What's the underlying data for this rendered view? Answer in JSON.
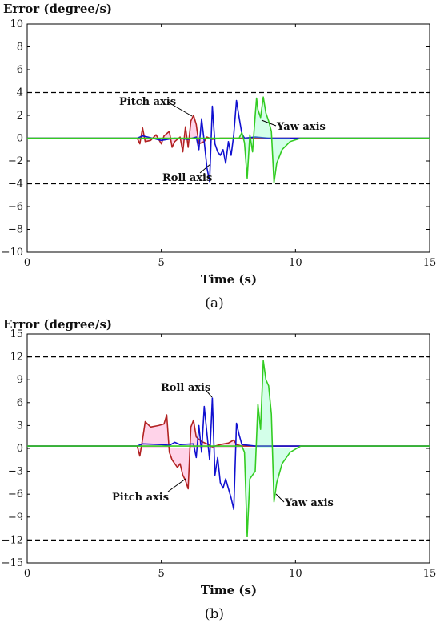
{
  "colors": {
    "roll": "#1010d0",
    "pitch": "#b22222",
    "yaw": "#33cc22",
    "pitch_shade": "#ff80c0",
    "yaw_shade": "#80ffc0",
    "bound": "#000000"
  },
  "chart_data": [
    {
      "type": "line",
      "caption": "(a)",
      "ylabel": "Error (degree/s)",
      "xlabel": "Time (s)",
      "xlim": [
        0,
        15
      ],
      "ylim": [
        -10,
        10
      ],
      "xticks": [
        "0",
        "5",
        "10",
        "15"
      ],
      "yticks": [
        "10",
        "8",
        "6",
        "4",
        "2",
        "0",
        "−2",
        "−4",
        "−6",
        "−8",
        "−10"
      ],
      "bounds": [
        4,
        -4
      ],
      "annotations": [
        "Pitch axis",
        "Yaw axis",
        "Roll axis"
      ],
      "series": [
        {
          "name": "Pitch axis",
          "color": "pitch",
          "points": [
            [
              0,
              0
            ],
            [
              4.1,
              0
            ],
            [
              4.2,
              -0.5
            ],
            [
              4.3,
              0.9
            ],
            [
              4.4,
              -0.3
            ],
            [
              4.6,
              -0.2
            ],
            [
              4.8,
              0.3
            ],
            [
              5.0,
              -0.5
            ],
            [
              5.1,
              0.2
            ],
            [
              5.3,
              0.6
            ],
            [
              5.4,
              -0.8
            ],
            [
              5.5,
              -0.3
            ],
            [
              5.7,
              0.1
            ],
            [
              5.8,
              -1.2
            ],
            [
              5.9,
              1.0
            ],
            [
              6.0,
              -0.8
            ],
            [
              6.1,
              1.5
            ],
            [
              6.2,
              2.0
            ],
            [
              6.3,
              1.2
            ],
            [
              6.4,
              -0.5
            ],
            [
              6.6,
              -0.3
            ],
            [
              6.7,
              0.1
            ],
            [
              6.9,
              -0.1
            ],
            [
              7.2,
              0
            ],
            [
              15,
              0
            ]
          ]
        },
        {
          "name": "Roll axis",
          "color": "roll",
          "points": [
            [
              0,
              0
            ],
            [
              4.1,
              0
            ],
            [
              4.3,
              0.2
            ],
            [
              4.5,
              0.1
            ],
            [
              5.0,
              -0.2
            ],
            [
              5.5,
              0
            ],
            [
              6.0,
              -0.1
            ],
            [
              6.3,
              0.1
            ],
            [
              6.4,
              -1.0
            ],
            [
              6.5,
              1.7
            ],
            [
              6.6,
              -0.3
            ],
            [
              6.7,
              -2.6
            ],
            [
              6.8,
              -3.8
            ],
            [
              6.9,
              2.8
            ],
            [
              7.0,
              -0.5
            ],
            [
              7.1,
              -1.2
            ],
            [
              7.2,
              -1.5
            ],
            [
              7.3,
              -1.0
            ],
            [
              7.4,
              -2.2
            ],
            [
              7.5,
              -0.3
            ],
            [
              7.6,
              -1.5
            ],
            [
              7.7,
              0.3
            ],
            [
              7.8,
              3.3
            ],
            [
              7.9,
              1.8
            ],
            [
              8.0,
              0.4
            ],
            [
              8.1,
              0
            ],
            [
              8.5,
              0.1
            ],
            [
              9.0,
              0
            ],
            [
              15,
              0
            ]
          ]
        },
        {
          "name": "Yaw axis",
          "color": "yaw",
          "points": [
            [
              0,
              0
            ],
            [
              7.9,
              0
            ],
            [
              8.0,
              0.5
            ],
            [
              8.1,
              -0.4
            ],
            [
              8.2,
              -3.5
            ],
            [
              8.3,
              0.3
            ],
            [
              8.4,
              -1.2
            ],
            [
              8.5,
              2.0
            ],
            [
              8.55,
              3.5
            ],
            [
              8.6,
              2.5
            ],
            [
              8.7,
              1.8
            ],
            [
              8.8,
              3.6
            ],
            [
              8.9,
              2.2
            ],
            [
              9.0,
              1.5
            ],
            [
              9.1,
              0.6
            ],
            [
              9.2,
              -3.9
            ],
            [
              9.3,
              -2.2
            ],
            [
              9.5,
              -1.0
            ],
            [
              9.8,
              -0.3
            ],
            [
              10.2,
              0
            ],
            [
              15,
              0
            ]
          ]
        }
      ]
    },
    {
      "type": "line",
      "caption": "(b)",
      "ylabel": "Error (degree/s)",
      "xlabel": "Time (s)",
      "xlim": [
        0,
        15
      ],
      "ylim": [
        -15,
        15
      ],
      "xticks": [
        "0",
        "5",
        "10",
        "15"
      ],
      "yticks": [
        "15",
        "12",
        "9",
        "6",
        "3",
        "0",
        "−3",
        "−6",
        "−9",
        "−12",
        "−15"
      ],
      "bounds": [
        12,
        -12
      ],
      "annotations": [
        "Roll axis",
        "Pitch axis",
        "Yaw axis"
      ],
      "series": [
        {
          "name": "Pitch axis",
          "color": "pitch",
          "points": [
            [
              0,
              0.3
            ],
            [
              4.1,
              0.3
            ],
            [
              4.2,
              -1.0
            ],
            [
              4.3,
              1.2
            ],
            [
              4.4,
              3.5
            ],
            [
              4.6,
              2.8
            ],
            [
              4.9,
              3.0
            ],
            [
              5.1,
              3.2
            ],
            [
              5.2,
              4.4
            ],
            [
              5.3,
              -0.5
            ],
            [
              5.4,
              -1.5
            ],
            [
              5.6,
              -2.5
            ],
            [
              5.7,
              -2.0
            ],
            [
              5.8,
              -3.5
            ],
            [
              5.9,
              -4.2
            ],
            [
              6.0,
              -5.3
            ],
            [
              6.1,
              2.8
            ],
            [
              6.2,
              3.7
            ],
            [
              6.3,
              1.5
            ],
            [
              6.5,
              0.9
            ],
            [
              6.7,
              0.6
            ],
            [
              6.9,
              0.2
            ],
            [
              7.2,
              0.5
            ],
            [
              7.5,
              0.7
            ],
            [
              7.7,
              1.1
            ],
            [
              7.8,
              0.5
            ],
            [
              8.0,
              0.3
            ],
            [
              15,
              0.3
            ]
          ]
        },
        {
          "name": "Roll axis",
          "color": "roll",
          "points": [
            [
              0,
              0.3
            ],
            [
              4.1,
              0.3
            ],
            [
              4.3,
              0.6
            ],
            [
              5.0,
              0.5
            ],
            [
              5.3,
              0.4
            ],
            [
              5.5,
              0.8
            ],
            [
              5.7,
              0.5
            ],
            [
              6.2,
              0.6
            ],
            [
              6.3,
              -1.2
            ],
            [
              6.4,
              3.0
            ],
            [
              6.5,
              -0.5
            ],
            [
              6.6,
              5.5
            ],
            [
              6.8,
              -1.5
            ],
            [
              6.9,
              6.6
            ],
            [
              7.0,
              -3.5
            ],
            [
              7.1,
              -1.2
            ],
            [
              7.2,
              -4.5
            ],
            [
              7.3,
              -5.2
            ],
            [
              7.4,
              -4.0
            ],
            [
              7.6,
              -6.5
            ],
            [
              7.7,
              -8.0
            ],
            [
              7.8,
              3.3
            ],
            [
              7.9,
              1.8
            ],
            [
              8.0,
              0.5
            ],
            [
              8.5,
              0.3
            ],
            [
              15,
              0.3
            ]
          ]
        },
        {
          "name": "Yaw axis",
          "color": "yaw",
          "points": [
            [
              0,
              0.3
            ],
            [
              8.0,
              0.3
            ],
            [
              8.1,
              -0.5
            ],
            [
              8.2,
              -11.5
            ],
            [
              8.3,
              -4.0
            ],
            [
              8.5,
              -3.0
            ],
            [
              8.6,
              5.8
            ],
            [
              8.7,
              2.5
            ],
            [
              8.8,
              11.5
            ],
            [
              8.9,
              9.0
            ],
            [
              9.0,
              8.2
            ],
            [
              9.1,
              4.5
            ],
            [
              9.2,
              -7.0
            ],
            [
              9.3,
              -4.5
            ],
            [
              9.5,
              -2.0
            ],
            [
              9.8,
              -0.5
            ],
            [
              10.2,
              0.3
            ],
            [
              15,
              0.3
            ]
          ]
        }
      ]
    }
  ]
}
